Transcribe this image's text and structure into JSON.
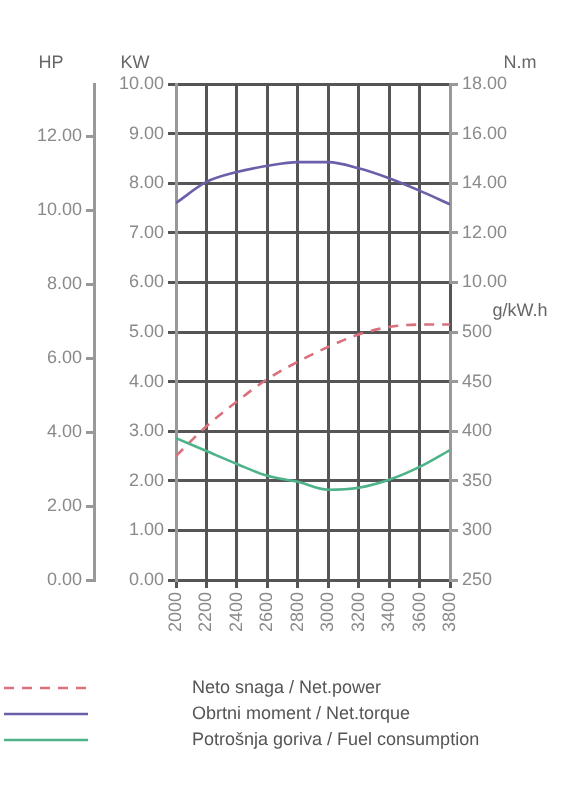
{
  "chart_data": [
    {
      "type": "line",
      "ylabel": "KW",
      "y2label": "HP",
      "x": [
        2000,
        2200,
        2400,
        2600,
        2800,
        3000,
        3200,
        3400,
        3600,
        3800
      ],
      "xlim": [
        2000,
        3800
      ],
      "xticks": [
        2000,
        2200,
        2400,
        2600,
        2800,
        3000,
        3200,
        3400,
        3600,
        3800
      ],
      "ylim": [
        0,
        10
      ],
      "yticks": [
        {
          "value": 0,
          "label": "0.00"
        },
        {
          "value": 1,
          "label": "1.00"
        },
        {
          "value": 2,
          "label": "2.00"
        },
        {
          "value": 3,
          "label": "3.00"
        },
        {
          "value": 4,
          "label": "4.00"
        },
        {
          "value": 5,
          "label": "5.00"
        },
        {
          "value": 6,
          "label": "6.00"
        },
        {
          "value": 7,
          "label": "7.00"
        },
        {
          "value": 8,
          "label": "8.00"
        },
        {
          "value": 9,
          "label": "9.00"
        },
        {
          "value": 10,
          "label": "10.00"
        }
      ],
      "y2lim": [
        0,
        13.41
      ],
      "y2ticks": [
        {
          "value": 0,
          "label": "0.00"
        },
        {
          "value": 2,
          "label": "2.00"
        },
        {
          "value": 4,
          "label": "4.00"
        },
        {
          "value": 6,
          "label": "6.00"
        },
        {
          "value": 8,
          "label": "8.00"
        },
        {
          "value": 10,
          "label": "10.00"
        },
        {
          "value": 12,
          "label": "12.00"
        }
      ],
      "grid": true,
      "legend": "bottom",
      "marker": "none",
      "series": [
        {
          "name": "Neto snaga / Net.power",
          "color": "#d9707c",
          "line_style": "dashed",
          "values": [
            2.5,
            3.1,
            3.6,
            4.05,
            4.4,
            4.7,
            4.95,
            5.1,
            5.15,
            5.15
          ]
        }
      ]
    },
    {
      "type": "line",
      "ylabel": "N.m",
      "x": [
        2000,
        2200,
        2400,
        2600,
        2800,
        3000,
        3200,
        3400,
        3600,
        3800
      ],
      "xlim": [
        2000,
        3800
      ],
      "ylim": [
        10,
        18
      ],
      "yticks": [
        {
          "value": 10,
          "label": "10.00"
        },
        {
          "value": 12,
          "label": "12.00"
        },
        {
          "value": 14,
          "label": "14.00"
        },
        {
          "value": 16,
          "label": "16.00"
        },
        {
          "value": 18,
          "label": "18.00"
        }
      ],
      "legend": "bottom",
      "marker": "none",
      "series": [
        {
          "name": "Obrtni moment / Net.torque",
          "color": "#6a5fa8",
          "line_style": "solid",
          "values": [
            13.2,
            14.05,
            14.45,
            14.7,
            14.85,
            14.85,
            14.6,
            14.2,
            13.7,
            13.15
          ]
        }
      ]
    },
    {
      "type": "line",
      "ylabel": "g/kW.h",
      "x": [
        2000,
        2200,
        2400,
        2600,
        2800,
        3000,
        3200,
        3400,
        3600,
        3800
      ],
      "xlim": [
        2000,
        3800
      ],
      "ylim": [
        250,
        500
      ],
      "yticks": [
        250,
        300,
        350,
        400,
        450,
        500
      ],
      "legend": "bottom",
      "marker": "none",
      "series": [
        {
          "name": "Potrošnja goriva / Fuel consumption",
          "color": "#4fb38a",
          "line_style": "solid",
          "values": [
            393,
            380,
            367,
            355,
            349,
            341,
            343,
            351,
            364,
            381
          ]
        }
      ]
    }
  ]
}
